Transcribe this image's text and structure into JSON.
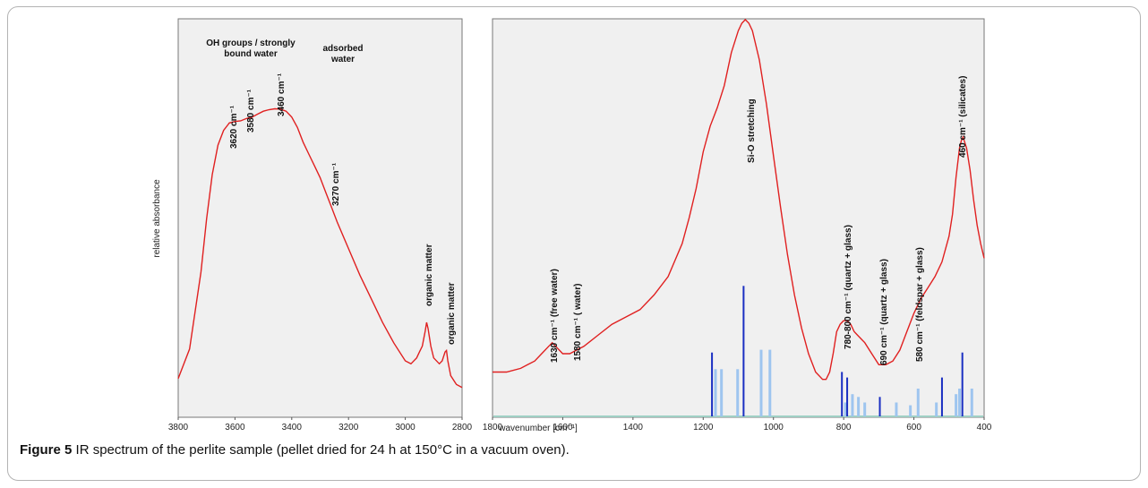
{
  "colors": {
    "spectrum": "#e02020",
    "panel_bg": "#f0f0f0",
    "dark_bar": "#1a2fc2",
    "light_bar": "#9ec5ef"
  },
  "caption": {
    "label": "Figure 5",
    "text": " IR spectrum of the perlite sample (pellet dried for 24 h at 150°C in a vacuum oven)."
  },
  "chart_data": [
    {
      "type": "line",
      "panel": "left",
      "xlabel": "",
      "ylabel": "relative absorbance",
      "xlim": [
        3800,
        2800
      ],
      "x_reversed": true,
      "x_ticks": [
        3800,
        3600,
        3400,
        3200,
        3000,
        2800
      ],
      "tick_labels": [
        "3800",
        "3600",
        "3400",
        "3200",
        "3000",
        "2800"
      ],
      "series": [
        {
          "x": [
            3800,
            3760,
            3720,
            3700,
            3680,
            3660,
            3640,
            3620,
            3600,
            3580,
            3560,
            3540,
            3520,
            3500,
            3480,
            3460,
            3440,
            3420,
            3400,
            3380,
            3360,
            3340,
            3320,
            3300,
            3280,
            3260,
            3240,
            3200,
            3160,
            3120,
            3080,
            3040,
            3000,
            2980,
            2960,
            2950,
            2940,
            2930,
            2925,
            2920,
            2910,
            2900,
            2880,
            2870,
            2860,
            2855,
            2850,
            2840,
            2820,
            2800
          ],
          "y": [
            0.04,
            0.14,
            0.4,
            0.58,
            0.73,
            0.83,
            0.88,
            0.905,
            0.91,
            0.912,
            0.92,
            0.925,
            0.935,
            0.945,
            0.95,
            0.953,
            0.952,
            0.945,
            0.925,
            0.89,
            0.84,
            0.8,
            0.76,
            0.72,
            0.67,
            0.62,
            0.57,
            0.48,
            0.39,
            0.31,
            0.23,
            0.16,
            0.1,
            0.09,
            0.11,
            0.13,
            0.15,
            0.2,
            0.23,
            0.21,
            0.15,
            0.11,
            0.09,
            0.1,
            0.13,
            0.135,
            0.1,
            0.05,
            0.02,
            0.01
          ]
        }
      ],
      "annotations": [
        {
          "text": "OH groups / strongly",
          "orientation": "horizontal"
        },
        {
          "text": "bound water",
          "orientation": "horizontal"
        },
        {
          "text": "adsorbed",
          "orientation": "horizontal"
        },
        {
          "text": "water",
          "orientation": "horizontal"
        },
        {
          "text": "3620 cm⁻¹",
          "at_x": 3620,
          "orientation": "vertical"
        },
        {
          "text": "3580 cm⁻¹",
          "at_x": 3580,
          "orientation": "vertical"
        },
        {
          "text": "3460 cm⁻¹",
          "at_x": 3460,
          "orientation": "vertical"
        },
        {
          "text": "3270 cm⁻¹",
          "at_x": 3270,
          "orientation": "vertical"
        },
        {
          "text": "organic matter",
          "at_x": 2925,
          "orientation": "vertical"
        },
        {
          "text": "organic matter",
          "at_x": 2855,
          "orientation": "vertical"
        }
      ]
    },
    {
      "type": "line",
      "panel": "right",
      "xlabel": "wavenumber [cm⁻¹]",
      "ylabel": "",
      "xlim": [
        1800,
        400
      ],
      "x_reversed": true,
      "x_ticks": [
        1800,
        1600,
        1400,
        1200,
        1000,
        800,
        600,
        400
      ],
      "tick_labels": [
        "1800",
        "1600",
        "1400",
        "1200",
        "1000",
        "800",
        "600",
        "400"
      ],
      "series": [
        {
          "x": [
            1800,
            1760,
            1720,
            1700,
            1680,
            1660,
            1640,
            1630,
            1620,
            1600,
            1580,
            1560,
            1540,
            1500,
            1460,
            1420,
            1380,
            1340,
            1300,
            1260,
            1240,
            1220,
            1200,
            1180,
            1160,
            1140,
            1120,
            1100,
            1090,
            1080,
            1070,
            1060,
            1040,
            1020,
            1000,
            980,
            960,
            940,
            920,
            900,
            880,
            860,
            850,
            840,
            830,
            820,
            810,
            800,
            790,
            780,
            770,
            760,
            740,
            720,
            700,
            680,
            660,
            640,
            620,
            600,
            580,
            560,
            540,
            520,
            500,
            490,
            480,
            470,
            465,
            460,
            450,
            440,
            430,
            420,
            410,
            400
          ],
          "y": [
            0.05,
            0.05,
            0.06,
            0.07,
            0.08,
            0.1,
            0.12,
            0.13,
            0.12,
            0.1,
            0.1,
            0.11,
            0.12,
            0.15,
            0.18,
            0.2,
            0.22,
            0.26,
            0.31,
            0.4,
            0.47,
            0.55,
            0.65,
            0.72,
            0.77,
            0.83,
            0.92,
            0.98,
            1.0,
            1.01,
            1.0,
            0.98,
            0.9,
            0.78,
            0.64,
            0.5,
            0.37,
            0.26,
            0.17,
            0.1,
            0.05,
            0.03,
            0.03,
            0.05,
            0.1,
            0.16,
            0.18,
            0.19,
            0.19,
            0.18,
            0.16,
            0.15,
            0.13,
            0.1,
            0.07,
            0.07,
            0.08,
            0.11,
            0.16,
            0.21,
            0.25,
            0.28,
            0.31,
            0.35,
            0.42,
            0.48,
            0.58,
            0.66,
            0.68,
            0.69,
            0.66,
            0.6,
            0.52,
            0.45,
            0.4,
            0.36
          ]
        }
      ],
      "reference_bars": {
        "dark": [
          {
            "x": 1175,
            "height": 0.23
          },
          {
            "x": 1085,
            "height": 0.47
          },
          {
            "x": 805,
            "height": 0.16
          },
          {
            "x": 790,
            "height": 0.14
          },
          {
            "x": 697,
            "height": 0.07
          },
          {
            "x": 520,
            "height": 0.14
          },
          {
            "x": 462,
            "height": 0.23
          }
        ],
        "light": [
          {
            "x": 1165,
            "height": 0.17
          },
          {
            "x": 1148,
            "height": 0.17
          },
          {
            "x": 1102,
            "height": 0.17
          },
          {
            "x": 1035,
            "height": 0.24
          },
          {
            "x": 1010,
            "height": 0.24
          },
          {
            "x": 795,
            "height": 0.05
          },
          {
            "x": 775,
            "height": 0.08
          },
          {
            "x": 758,
            "height": 0.07
          },
          {
            "x": 740,
            "height": 0.05
          },
          {
            "x": 650,
            "height": 0.05
          },
          {
            "x": 610,
            "height": 0.04
          },
          {
            "x": 588,
            "height": 0.1
          },
          {
            "x": 536,
            "height": 0.05
          },
          {
            "x": 480,
            "height": 0.08
          },
          {
            "x": 470,
            "height": 0.1
          },
          {
            "x": 435,
            "height": 0.1
          }
        ]
      },
      "annotations": [
        {
          "text": "1630 cm⁻¹ (free water)",
          "at_x": 1630,
          "orientation": "vertical"
        },
        {
          "text": "1580 cm⁻¹ ( water)",
          "at_x": 1580,
          "orientation": "vertical"
        },
        {
          "text": "Si-O stretching",
          "at_x": 1075,
          "orientation": "vertical"
        },
        {
          "text": "780-800 cm⁻¹ (quartz + glass)",
          "at_x": 795,
          "orientation": "vertical"
        },
        {
          "text": "690 cm⁻¹ (quartz + glass)",
          "at_x": 690,
          "orientation": "vertical"
        },
        {
          "text": "580 cm⁻¹ (feldspar + glass)",
          "at_x": 580,
          "orientation": "vertical"
        },
        {
          "text": "460 cm⁻¹ (silicates)",
          "at_x": 462,
          "orientation": "vertical"
        }
      ]
    }
  ]
}
